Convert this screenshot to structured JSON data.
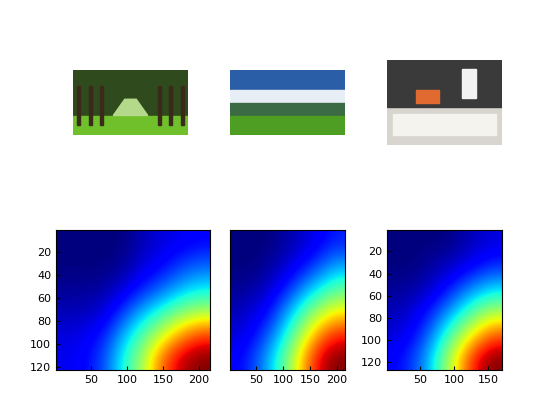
{
  "chart_data": [
    {
      "type": "heatmap",
      "xlim": [
        0.5,
        215.5
      ],
      "ylim": [
        122.5,
        0.5
      ],
      "xticks": [
        50,
        100,
        150,
        200
      ],
      "yticks": [
        20,
        40,
        60,
        80,
        100,
        120
      ],
      "cells": [
        [
          0.0,
          0.0,
          0.0,
          0.0,
          0.05,
          0.08,
          0.1,
          0.12
        ],
        [
          0.0,
          0.0,
          0.0,
          0.02,
          0.08,
          0.12,
          0.18,
          0.22
        ],
        [
          0.02,
          0.02,
          0.03,
          0.08,
          0.15,
          0.22,
          0.3,
          0.35
        ],
        [
          0.05,
          0.05,
          0.08,
          0.18,
          0.3,
          0.4,
          0.5,
          0.55
        ],
        [
          0.08,
          0.1,
          0.15,
          0.3,
          0.45,
          0.6,
          0.75,
          0.85
        ],
        [
          0.1,
          0.12,
          0.2,
          0.38,
          0.55,
          0.8,
          0.95,
          1.0
        ]
      ]
    },
    {
      "type": "heatmap",
      "xlim": [
        0.5,
        215.5
      ],
      "ylim": [
        122.5,
        0.5
      ],
      "xticks": [
        50,
        100,
        150,
        200
      ],
      "tick_labels": "x",
      "cells": [
        [
          0.0,
          0.0,
          0.0,
          0.02,
          0.05,
          0.08,
          0.12,
          0.15
        ],
        [
          0.0,
          0.0,
          0.02,
          0.05,
          0.1,
          0.15,
          0.22,
          0.28
        ],
        [
          0.02,
          0.03,
          0.06,
          0.12,
          0.2,
          0.3,
          0.38,
          0.45
        ],
        [
          0.05,
          0.08,
          0.12,
          0.22,
          0.35,
          0.48,
          0.58,
          0.65
        ],
        [
          0.08,
          0.12,
          0.2,
          0.32,
          0.48,
          0.65,
          0.8,
          0.88
        ],
        [
          0.12,
          0.18,
          0.28,
          0.42,
          0.6,
          0.8,
          0.95,
          1.0
        ]
      ]
    },
    {
      "type": "heatmap",
      "xlim": [
        0.5,
        170.5
      ],
      "ylim": [
        127.5,
        0.5
      ],
      "xticks": [
        50,
        100,
        150
      ],
      "yticks": [
        20,
        40,
        60,
        80,
        100,
        120
      ],
      "cells": [
        [
          0.0,
          0.0,
          0.0,
          0.0,
          0.03,
          0.06,
          0.08
        ],
        [
          0.0,
          0.0,
          0.02,
          0.05,
          0.08,
          0.12,
          0.16
        ],
        [
          0.02,
          0.03,
          0.06,
          0.12,
          0.2,
          0.28,
          0.33
        ],
        [
          0.05,
          0.08,
          0.14,
          0.24,
          0.36,
          0.48,
          0.55
        ],
        [
          0.08,
          0.12,
          0.22,
          0.38,
          0.55,
          0.7,
          0.82
        ],
        [
          0.12,
          0.18,
          0.3,
          0.5,
          0.72,
          0.92,
          1.0
        ]
      ]
    }
  ]
}
